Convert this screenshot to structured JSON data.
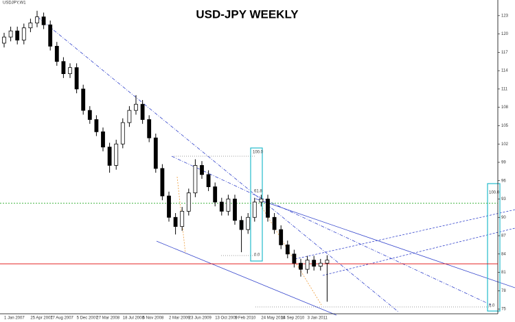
{
  "chart_data": {
    "type": "candlestick",
    "title": "USD-JPY WEEKLY",
    "symbol": "USDJPY,W1",
    "categories": [
      "1 Jan 2007",
      null,
      null,
      null,
      "25 Apr 2007",
      null,
      null,
      "17 Aug 2007",
      null,
      null,
      null,
      "5 Dec 2007",
      null,
      null,
      "27 Mar 2008",
      null,
      null,
      null,
      "18 Jul 2008",
      null,
      null,
      "5 Nov 2008",
      null,
      null,
      null,
      "2 Mar 2009",
      null,
      null,
      "23 Jun 2009",
      null,
      null,
      null,
      "13 Oct 2009",
      null,
      null,
      "1 Feb 2010",
      null,
      null,
      null,
      "24 May 2010",
      null,
      null,
      "14 Sep 2010",
      null,
      null,
      null,
      "3 Jan 2011",
      null,
      null,
      null
    ],
    "open": [
      118.5,
      119.5,
      120.5,
      119.0,
      121.0,
      121.8,
      122.8,
      121.5,
      118.0,
      115.5,
      113.5,
      114.5,
      111.0,
      107.5,
      106.0,
      104.0,
      101.5,
      98.5,
      102.0,
      105.5,
      107.5,
      108.5,
      106.0,
      103.0,
      98.0,
      93.5,
      90.0,
      88.5,
      91.0,
      94.0,
      98.5,
      97.0,
      95.0,
      92.5,
      91.0,
      93.0,
      89.5,
      88.0,
      90.0,
      92.5,
      93.0,
      90.0,
      88.0,
      85.5,
      84.0,
      82.5,
      81.5,
      83.0,
      82.0,
      82.5
    ],
    "high": [
      120.2,
      121.2,
      121.2,
      121.7,
      122.5,
      123.8,
      123.5,
      122.2,
      118.7,
      116.2,
      115.2,
      115.2,
      111.7,
      108.2,
      106.7,
      104.7,
      102.2,
      102.7,
      106.2,
      108.2,
      110.0,
      109.2,
      106.7,
      103.7,
      98.7,
      94.2,
      90.7,
      91.7,
      94.7,
      99.5,
      99.2,
      97.7,
      95.7,
      93.2,
      93.7,
      93.7,
      90.2,
      90.7,
      93.2,
      93.7,
      93.7,
      90.7,
      88.7,
      86.2,
      84.7,
      83.2,
      83.7,
      83.7,
      83.2,
      83.8
    ],
    "low": [
      117.8,
      118.8,
      118.3,
      118.3,
      120.3,
      121.1,
      120.8,
      117.3,
      114.8,
      112.8,
      112.8,
      110.3,
      106.8,
      105.3,
      103.3,
      100.8,
      97.3,
      97.8,
      101.3,
      104.8,
      106.8,
      105.3,
      102.3,
      97.3,
      92.8,
      89.3,
      87.2,
      87.8,
      90.3,
      93.3,
      96.3,
      94.3,
      91.8,
      90.3,
      90.3,
      88.8,
      84.3,
      87.3,
      89.3,
      91.8,
      89.3,
      87.3,
      84.8,
      83.3,
      81.8,
      80.3,
      80.8,
      81.3,
      81.3,
      76.2
    ],
    "close": [
      119.5,
      120.5,
      119.0,
      121.0,
      121.8,
      122.8,
      121.5,
      118.0,
      115.5,
      113.5,
      114.5,
      111.0,
      107.5,
      106.0,
      104.0,
      101.5,
      98.5,
      102.0,
      105.5,
      107.5,
      108.5,
      106.0,
      103.0,
      98.0,
      93.5,
      90.0,
      88.5,
      91.0,
      94.0,
      98.5,
      97.0,
      95.0,
      92.5,
      91.0,
      93.0,
      89.5,
      88.0,
      90.0,
      92.5,
      93.0,
      90.0,
      88.0,
      85.5,
      84.0,
      82.5,
      81.5,
      83.0,
      82.0,
      82.5,
      83.0
    ],
    "ylim": [
      74,
      125
    ],
    "yticks": [
      123,
      120,
      117,
      114,
      111,
      108,
      105,
      102,
      99,
      96,
      93,
      90,
      87,
      84,
      81,
      78,
      75
    ],
    "price_lines": [
      {
        "value": 92.3,
        "color": "#22aa22"
      },
      {
        "value": 82.4,
        "color": "#e00000"
      }
    ],
    "annotations": [
      "100.0",
      "0.0",
      "100.0",
      "0.0",
      "61.8"
    ]
  }
}
